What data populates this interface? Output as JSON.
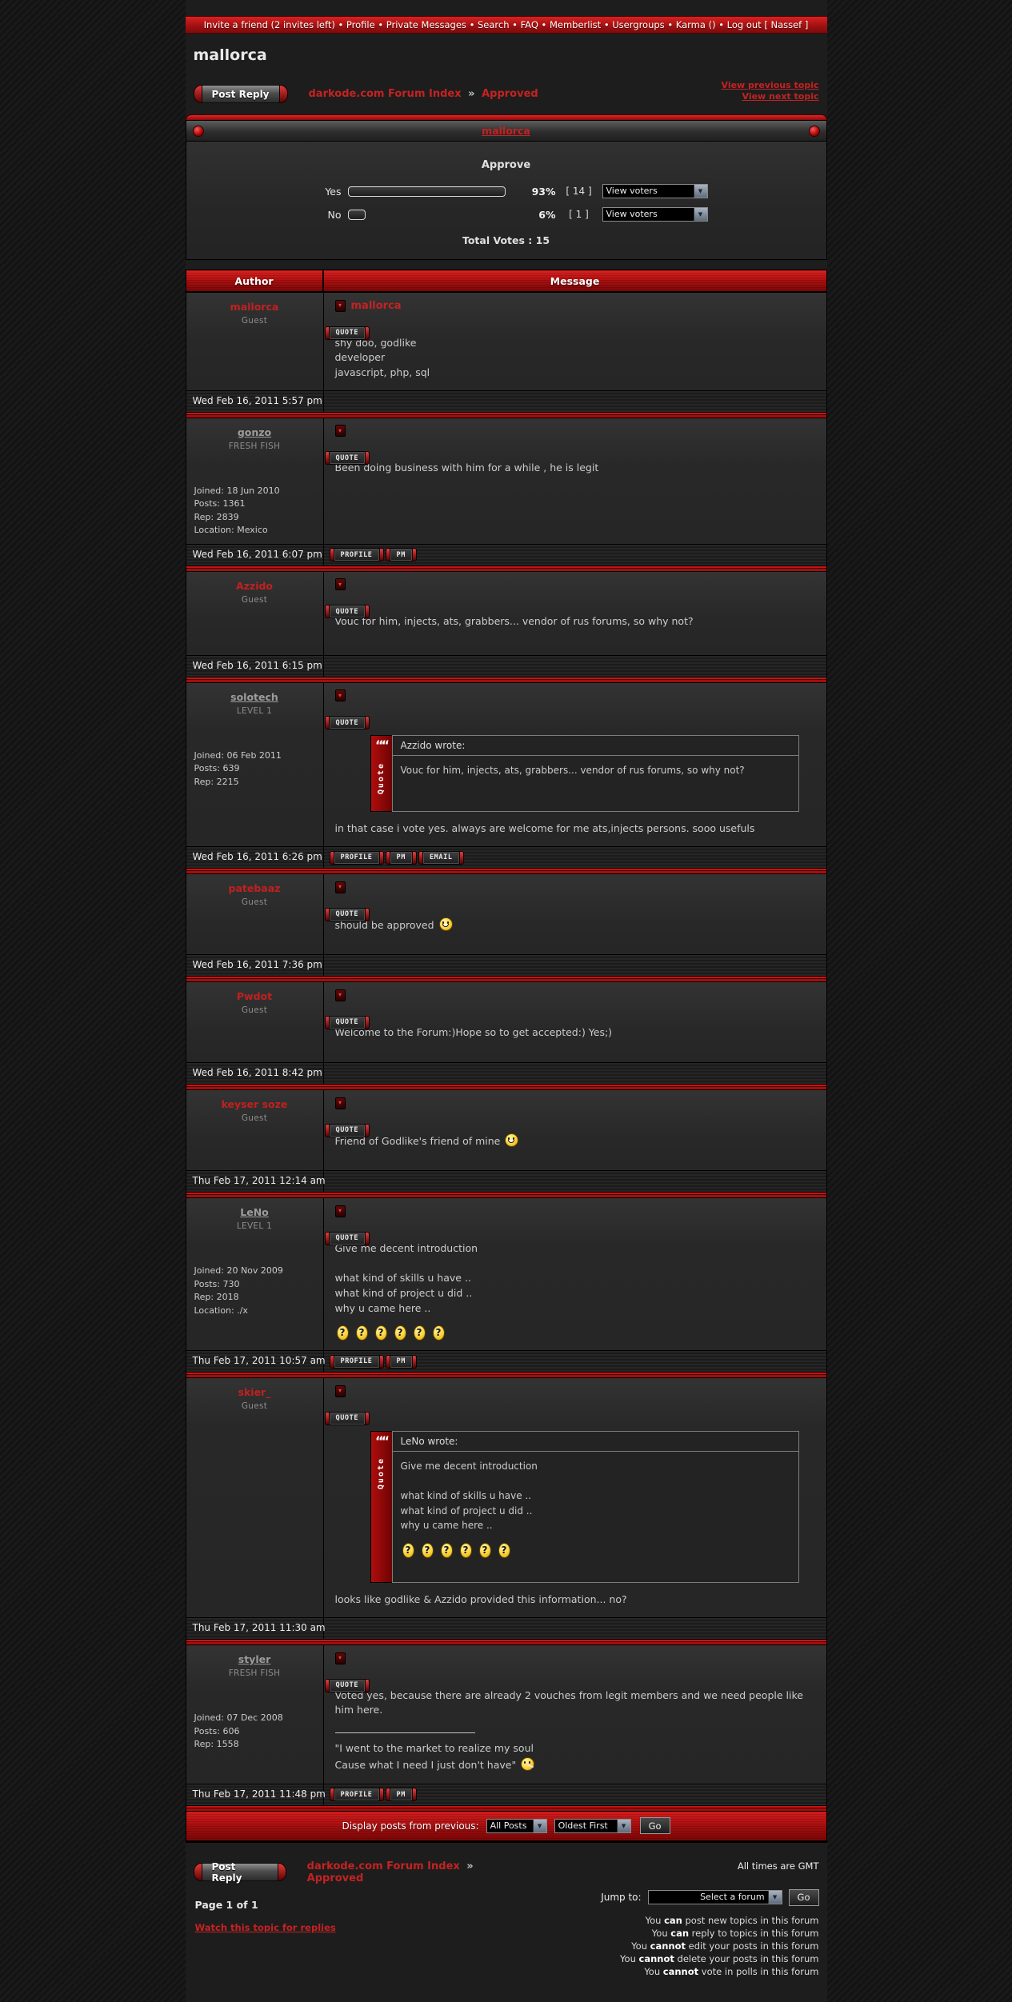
{
  "topbar": {
    "items": [
      "Invite a friend (2 invites left)",
      "Profile",
      "Private Messages",
      "Search",
      "FAQ",
      "Memberlist",
      "Usergroups",
      "Karma ()",
      "Log out [ Nassef ]"
    ]
  },
  "page": {
    "title": "mallorca",
    "all_times": "All times are GMT",
    "page_info": "Page 1 of 1",
    "watch_link": "Watch this topic for replies"
  },
  "breadcrumb": {
    "post_reply": "Post Reply",
    "forum_index": "darkode.com Forum Index",
    "separator": "»",
    "section": "Approved"
  },
  "topic_links": {
    "prev": "View previous topic",
    "next": "View next topic"
  },
  "poll": {
    "topic_link": "mallorca",
    "question": "Approve",
    "options": [
      {
        "label": "Yes",
        "percent": "93%",
        "votes": "[ 14 ]",
        "bar_style": "width:197px",
        "voters_label": "View voters"
      },
      {
        "label": "No",
        "percent": "6%",
        "votes": "[ 1 ]",
        "bar_style": "width:22px",
        "voters_label": "View voters"
      }
    ],
    "total": "Total Votes : 15"
  },
  "table": {
    "author_header": "Author",
    "message_header": "Message"
  },
  "buttons": {
    "quote": "QUOTE",
    "profile": "PROFILE",
    "pm": "PM",
    "email": "EMAIL"
  },
  "display_bar": {
    "label": "Display posts from previous:",
    "select1": "All Posts",
    "select2": "Oldest First",
    "go": "Go"
  },
  "jump": {
    "label": "Jump to:",
    "select": "Select a forum",
    "go": "Go"
  },
  "permissions": [
    {
      "pre": "You ",
      "verb": "can",
      "rest": " post new topics in this forum"
    },
    {
      "pre": "You ",
      "verb": "can",
      "rest": " reply to topics in this forum"
    },
    {
      "pre": "You ",
      "verb": "cannot",
      "rest": " edit your posts in this forum"
    },
    {
      "pre": "You ",
      "verb": "cannot",
      "rest": " delete your posts in this forum"
    },
    {
      "pre": "You ",
      "verb": "cannot",
      "rest": " vote in polls in this forum"
    }
  ],
  "posts": [
    {
      "name": "mallorca",
      "rank": "Guest",
      "subject": "mallorca",
      "body": "shy doo, godlike\ndeveloper\njavascript, php, sql",
      "date": "Wed Feb 16, 2011 5:57 pm"
    },
    {
      "name": "gonzo",
      "rank": "FRESH FISH",
      "stats": "Joined: 18 Jun 2010\nPosts: 1361\nRep: 2839\nLocation: Mexico",
      "body": "Been doing business with him for a while , he is legit",
      "date": "Wed Feb 16, 2011 6:07 pm"
    },
    {
      "name": "Azzido",
      "rank": "Guest",
      "body": "Vouc for him, injects, ats, grabbers... vendor of rus forums, so why not?",
      "date": "Wed Feb 16, 2011 6:15 pm"
    },
    {
      "name": "solotech",
      "rank": "LEVEL 1",
      "stats": "Joined: 06 Feb 2011\nPosts: 639\nRep: 2215",
      "quote": {
        "bar_label": "Quote",
        "author": "Azzido wrote:",
        "body": "Vouc for him, injects, ats, grabbers... vendor of rus forums, so why not?"
      },
      "body": "in that case i vote yes. always are welcome for me ats,injects persons. sooo usefuls",
      "date": "Wed Feb 16, 2011 6:26 pm"
    },
    {
      "name": "patebaaz",
      "rank": "Guest",
      "body": "should be approved ",
      "smilies": [
        "grin"
      ],
      "date": "Wed Feb 16, 2011 7:36 pm"
    },
    {
      "name": "Pwdot",
      "rank": "Guest",
      "body": "Welcome to the Forum:)Hope so to get accepted:) Yes;)",
      "date": "Wed Feb 16, 2011 8:42 pm"
    },
    {
      "name": "keyser soze",
      "rank": "Guest",
      "body": "Friend of Godlike's friend of mine ",
      "smilies": [
        "smile"
      ],
      "date": "Thu Feb 17, 2011 12:14 am"
    },
    {
      "name": "LeNo",
      "rank": "LEVEL 1",
      "stats": "Joined: 20 Nov 2009\nPosts: 730\nRep: 2018\nLocation: ./x",
      "body": "Give me decent introduction\n\nwhat kind of skills u have ..\nwhat kind of project u did ..\nwhy u came here ..",
      "smilies": [
        "question",
        "question",
        "question",
        "question",
        "question",
        "question"
      ],
      "date": "Thu Feb 17, 2011 10:57 am"
    },
    {
      "name": "skier_",
      "rank": "Guest",
      "quote": {
        "bar_label": "Quote",
        "author": "LeNo wrote:",
        "body": "Give me decent introduction\n\nwhat kind of skills u have ..\nwhat kind of project u did ..\nwhy u came here ..",
        "smilies": [
          "question",
          "question",
          "question",
          "question",
          "question",
          "question"
        ]
      },
      "body": "looks like godlike & Azzido provided this information... no?",
      "date": "Thu Feb 17, 2011 11:30 am"
    },
    {
      "name": "styler",
      "rank": "FRESH FISH",
      "stats": "Joined: 07 Dec 2008\nPosts: 606\nRep: 1558",
      "body": "Voted yes, because there are already 2 vouches from legit members and we need people like him here.",
      "signature": "\"I went to the market to realize my soul\nCause what I need I just don't have\" ",
      "smilies": [
        "smoke"
      ],
      "date": "Thu Feb 17, 2011 11:48 pm"
    }
  ]
}
